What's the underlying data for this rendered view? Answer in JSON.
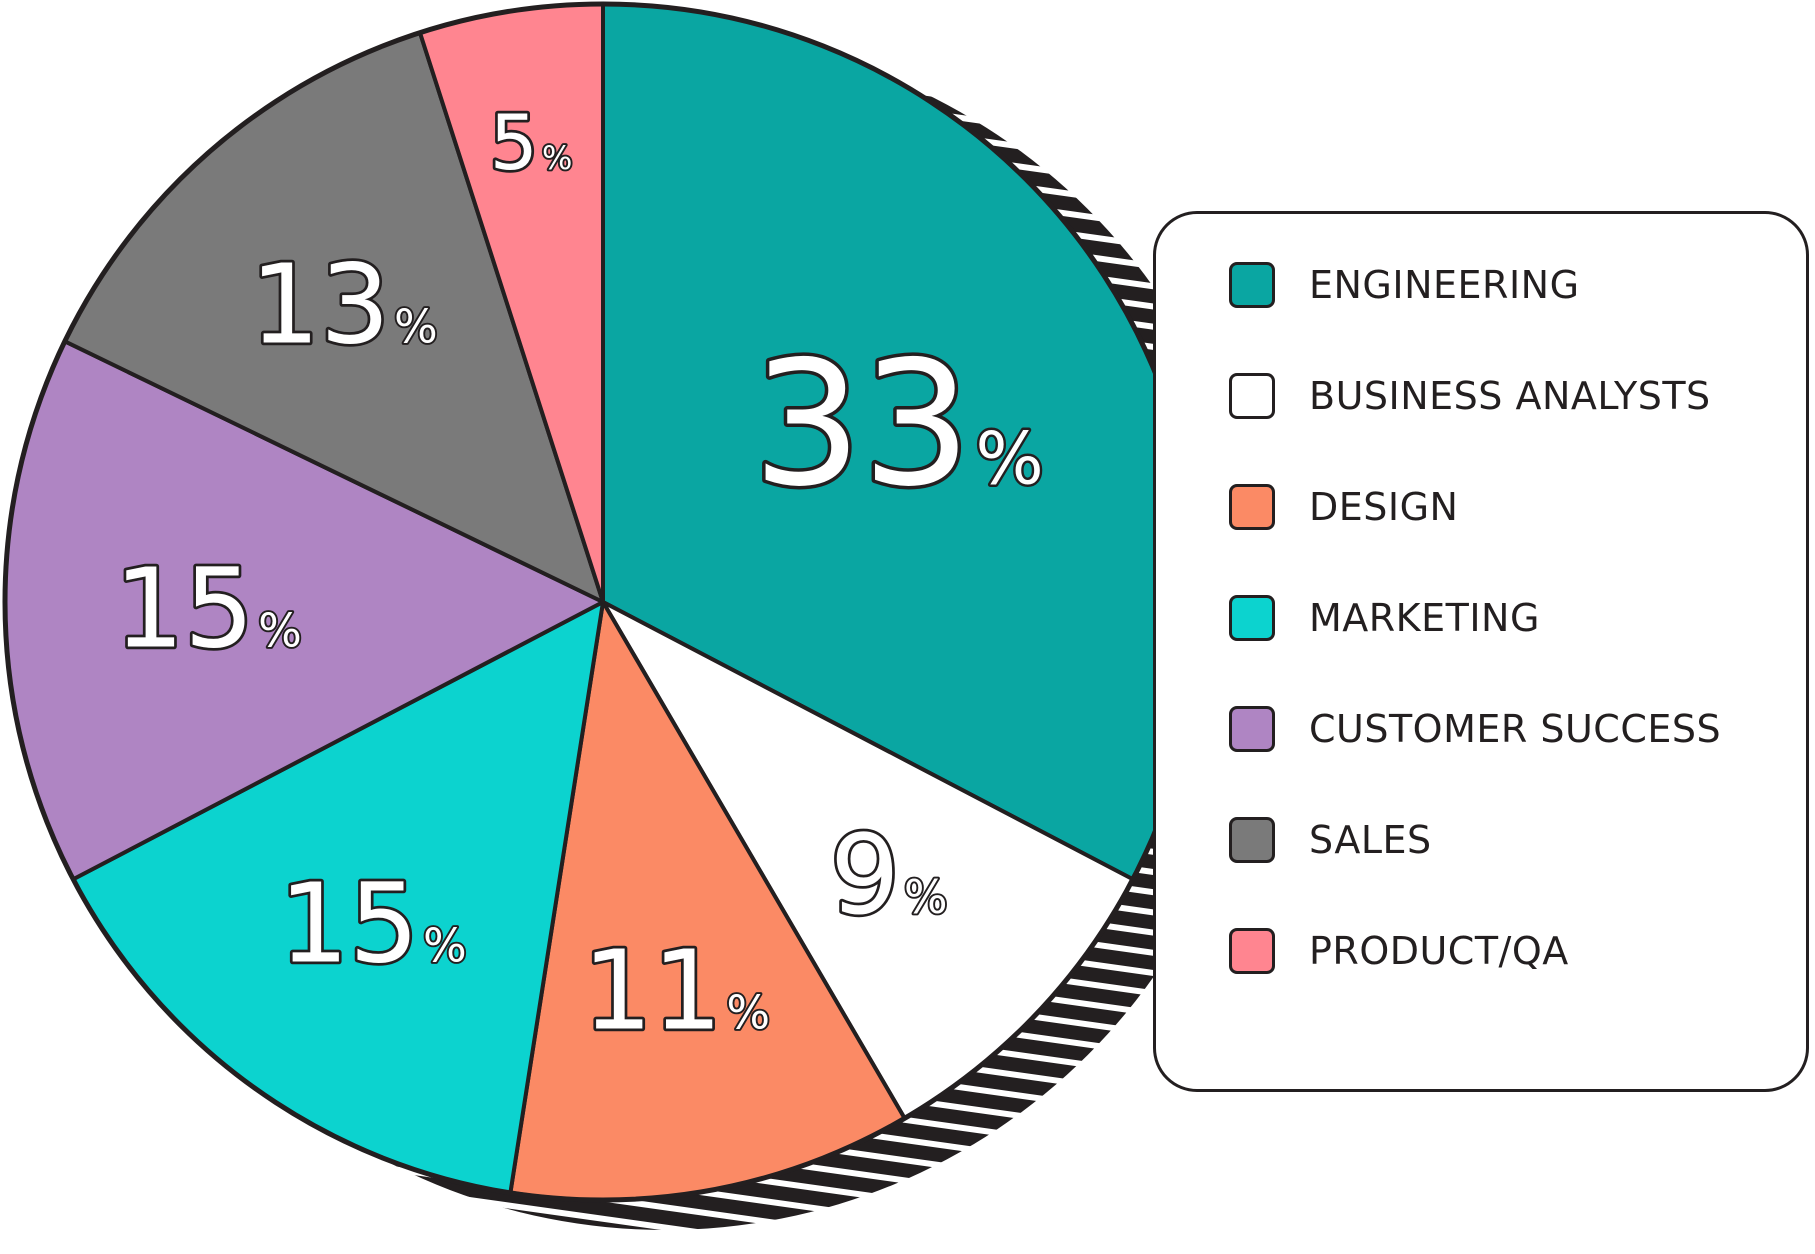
{
  "chart_data": {
    "type": "pie",
    "slices": [
      {
        "label": "ENGINEERING",
        "value": 33,
        "display": "33",
        "unit": "%",
        "color": "#0aa6a2"
      },
      {
        "label": "BUSINESS ANALYSTS",
        "value": 9,
        "display": "9",
        "unit": "%",
        "color": "#ffffff"
      },
      {
        "label": "DESIGN",
        "value": 11,
        "display": "11",
        "unit": "%",
        "color": "#fb8a65"
      },
      {
        "label": "MARKETING",
        "value": 15,
        "display": "15",
        "unit": "%",
        "color": "#0cd3cf"
      },
      {
        "label": "CUSTOMER SUCCESS",
        "value": 15,
        "display": "15",
        "unit": "%",
        "color": "#af85c3"
      },
      {
        "label": "SALES",
        "value": 13,
        "display": "13",
        "unit": "%",
        "color": "#7a7a7a"
      },
      {
        "label": "PRODUCT/QA",
        "value": 5,
        "display": "5",
        "unit": "%",
        "color": "#ff8590"
      }
    ],
    "legend": {
      "position": "right",
      "items": [
        {
          "label": "ENGINEERING",
          "color": "#0aa6a2"
        },
        {
          "label": "BUSINESS ANALYSTS",
          "color": "#ffffff"
        },
        {
          "label": "DESIGN",
          "color": "#fb8a65"
        },
        {
          "label": "MARKETING",
          "color": "#0cd3cf"
        },
        {
          "label": "CUSTOMER SUCCESS",
          "color": "#af85c3"
        },
        {
          "label": "SALES",
          "color": "#7a7a7a"
        },
        {
          "label": "PRODUCT/QA",
          "color": "#ff8590"
        }
      ]
    },
    "outline_color": "#231f20",
    "shadow": "hatched-black"
  }
}
